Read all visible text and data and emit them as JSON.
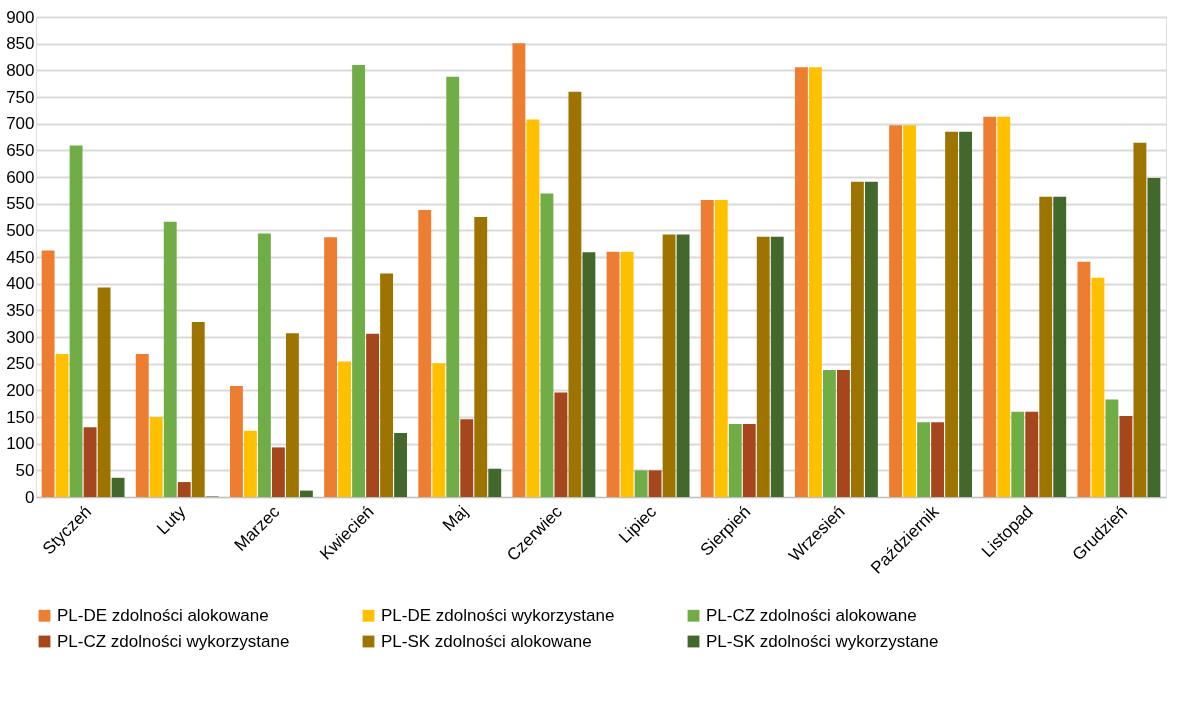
{
  "chart_data": {
    "type": "bar",
    "categories": [
      "Styczeń",
      "Luty",
      "Marzec",
      "Kwiecień",
      "Maj",
      "Czerwiec",
      "Lipiec",
      "Sierpień",
      "Wrzesień",
      "Październik",
      "Listopad",
      "Grudzień"
    ],
    "series": [
      {
        "name": "PL-DE zdolności alokowane",
        "color": "#ed7d31",
        "values": [
          462,
          268,
          208,
          487,
          538,
          851,
          460,
          557,
          806,
          697,
          713,
          441
        ]
      },
      {
        "name": "PL-DE zdolności wykorzystane",
        "color": "#ffc000",
        "values": [
          268,
          150,
          124,
          254,
          251,
          708,
          460,
          557,
          806,
          697,
          713,
          411
        ]
      },
      {
        "name": "PL-CZ zdolności alokowane",
        "color": "#70ad47",
        "values": [
          659,
          516,
          494,
          810,
          788,
          569,
          50,
          137,
          238,
          140,
          160,
          183
        ]
      },
      {
        "name": "PL-CZ zdolności wykorzystane",
        "color": "#a5461c",
        "values": [
          131,
          28,
          93,
          306,
          146,
          196,
          50,
          137,
          238,
          140,
          160,
          152
        ]
      },
      {
        "name": "PL-SK zdolności alokowane",
        "color": "#9e7400",
        "values": [
          393,
          328,
          307,
          419,
          525,
          760,
          492,
          488,
          591,
          685,
          563,
          664
        ]
      },
      {
        "name": "PL-SK zdolności wykorzystane",
        "color": "#43682b",
        "values": [
          36,
          1,
          12,
          120,
          53,
          459,
          492,
          488,
          591,
          685,
          563,
          598
        ]
      }
    ],
    "ylim": [
      0,
      900
    ],
    "yticks": [
      0,
      50,
      100,
      150,
      200,
      250,
      300,
      350,
      400,
      450,
      500,
      550,
      600,
      650,
      700,
      750,
      800,
      850,
      900
    ],
    "grid": "y",
    "legend": "bottom"
  }
}
